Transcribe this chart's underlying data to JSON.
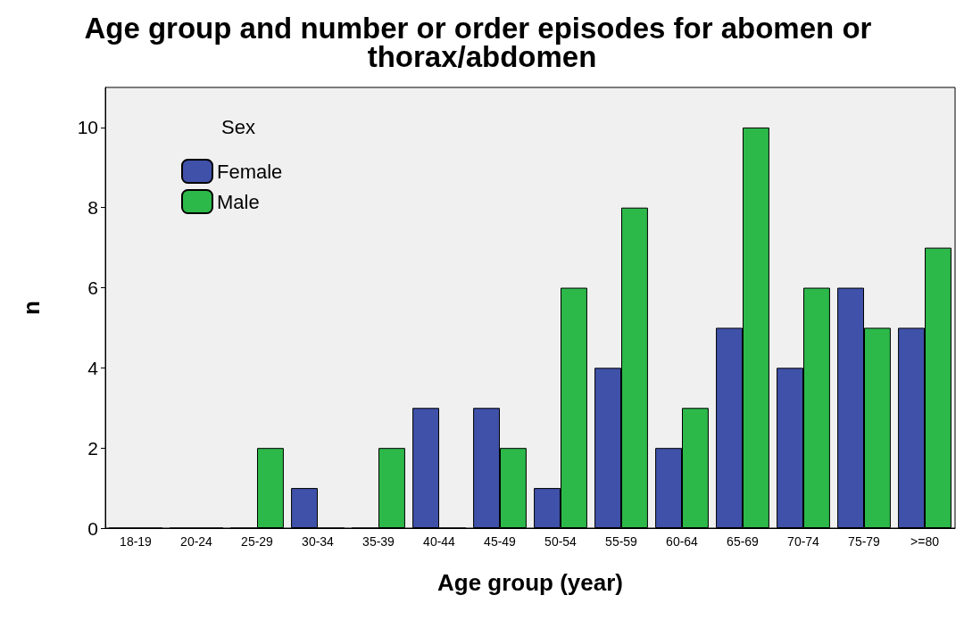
{
  "chart_data": {
    "type": "bar",
    "title": "Age group and number or order episodes for abomen or thorax/abdomen",
    "xlabel": "Age group (year)",
    "ylabel": "n",
    "legend_title": "Sex",
    "categories": [
      "18-19",
      "20-24",
      "25-29",
      "30-34",
      "35-39",
      "40-44",
      "45-49",
      "50-54",
      "55-59",
      "60-64",
      "65-69",
      "70-74",
      "75-79",
      ">=80"
    ],
    "series": [
      {
        "name": "Female",
        "color": "#3f51a8",
        "values": [
          0,
          0,
          0,
          1,
          0,
          3,
          3,
          1,
          4,
          2,
          5,
          4,
          6,
          5
        ]
      },
      {
        "name": "Male",
        "color": "#2db84a",
        "values": [
          0,
          0,
          2,
          0,
          2,
          0,
          2,
          6,
          8,
          3,
          10,
          6,
          5,
          7
        ]
      }
    ],
    "ylim": [
      0,
      11
    ],
    "yticks": [
      0,
      2,
      4,
      6,
      8,
      10
    ],
    "grid": false,
    "legend": "top left"
  }
}
